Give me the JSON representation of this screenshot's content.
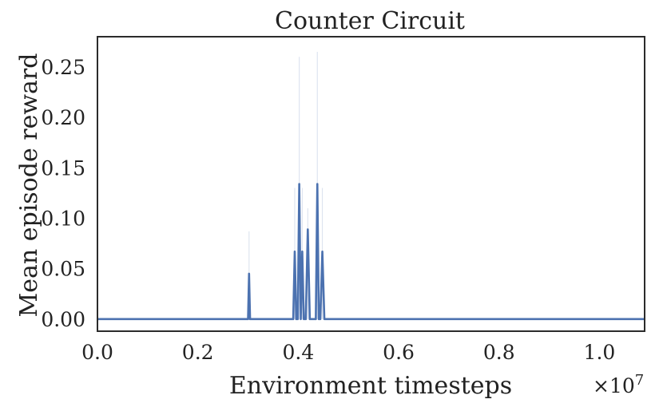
{
  "chart_data": {
    "type": "line",
    "title": "Counter Circuit",
    "xlabel": "Environment timesteps",
    "ylabel": "Mean episode reward",
    "x_offset_label": "×10",
    "x_offset_exponent": "7",
    "xlim": [
      0.0,
      1.09
    ],
    "ylim": [
      -0.012,
      0.28
    ],
    "grid": false,
    "x_ticks": [
      {
        "value": 0.0,
        "label": "0.0"
      },
      {
        "value": 0.2,
        "label": "0.2"
      },
      {
        "value": 0.4,
        "label": "0.4"
      },
      {
        "value": 0.6,
        "label": "0.6"
      },
      {
        "value": 0.8,
        "label": "0.8"
      },
      {
        "value": 1.0,
        "label": "1.0"
      }
    ],
    "y_ticks": [
      {
        "value": 0.0,
        "label": "0.00"
      },
      {
        "value": 0.05,
        "label": "0.05"
      },
      {
        "value": 0.1,
        "label": "0.10"
      },
      {
        "value": 0.15,
        "label": "0.15"
      },
      {
        "value": 0.2,
        "label": "0.20"
      },
      {
        "value": 0.25,
        "label": "0.25"
      }
    ],
    "series": [
      {
        "color": "#4c72b0",
        "x": [
          0.0,
          0.3,
          0.302,
          0.304,
          0.39,
          0.393,
          0.396,
          0.399,
          0.402,
          0.405,
          0.408,
          0.411,
          0.415,
          0.419,
          0.423,
          0.432,
          0.435,
          0.438,
          0.441,
          0.444,
          0.448,
          0.452,
          0.456,
          1.09
        ],
        "y": [
          0.0,
          0.0,
          0.045,
          0.0,
          0.0,
          0.067,
          0.0,
          0.0,
          0.134,
          0.0,
          0.067,
          0.0,
          0.0,
          0.089,
          0.0,
          0.0,
          0.0,
          0.134,
          0.0,
          0.0,
          0.067,
          0.0,
          0.0,
          0.0
        ]
      }
    ],
    "band_upper": [
      {
        "x": 0.302,
        "y": 0.087
      },
      {
        "x": 0.393,
        "y": 0.13
      },
      {
        "x": 0.402,
        "y": 0.26
      },
      {
        "x": 0.408,
        "y": 0.13
      },
      {
        "x": 0.419,
        "y": 0.11
      },
      {
        "x": 0.438,
        "y": 0.265
      },
      {
        "x": 0.448,
        "y": 0.13
      }
    ],
    "band_color": "#c9d3e6"
  }
}
